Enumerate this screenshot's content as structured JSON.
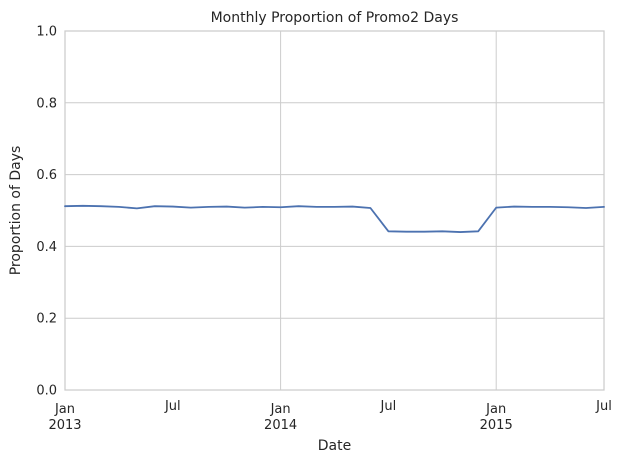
{
  "chart_data": {
    "type": "line",
    "title": "Monthly Proportion of Promo2 Days",
    "xlabel": "Date",
    "ylabel": "Proportion of Days",
    "ylim": [
      0,
      1.0
    ],
    "xlim": [
      "2013-01",
      "2015-07"
    ],
    "grid": true,
    "legend": "none",
    "y_ticks": [
      {
        "value": 0.0,
        "label": "0.0"
      },
      {
        "value": 0.2,
        "label": "0.2"
      },
      {
        "value": 0.4,
        "label": "0.4"
      },
      {
        "value": 0.6,
        "label": "0.6"
      },
      {
        "value": 0.8,
        "label": "0.8"
      },
      {
        "value": 1.0,
        "label": "1.0"
      }
    ],
    "x_ticks": [
      {
        "value": "2013-01",
        "label": "Jan",
        "year": "2013",
        "major": true
      },
      {
        "value": "2013-07",
        "label": "Jul",
        "year": "",
        "major": false
      },
      {
        "value": "2014-01",
        "label": "Jan",
        "year": "2014",
        "major": true
      },
      {
        "value": "2014-07",
        "label": "Jul",
        "year": "",
        "major": false
      },
      {
        "value": "2015-01",
        "label": "Jan",
        "year": "2015",
        "major": true
      },
      {
        "value": "2015-07",
        "label": "Jul",
        "year": "",
        "major": false
      }
    ],
    "x": [
      "2013-01",
      "2013-02",
      "2013-03",
      "2013-04",
      "2013-05",
      "2013-06",
      "2013-07",
      "2013-08",
      "2013-09",
      "2013-10",
      "2013-11",
      "2013-12",
      "2014-01",
      "2014-02",
      "2014-03",
      "2014-04",
      "2014-05",
      "2014-06",
      "2014-07",
      "2014-08",
      "2014-09",
      "2014-10",
      "2014-11",
      "2014-12",
      "2015-01",
      "2015-02",
      "2015-03",
      "2015-04",
      "2015-05",
      "2015-06",
      "2015-07"
    ],
    "series": [
      {
        "color": "#4c72b0",
        "values": [
          0.512,
          0.513,
          0.512,
          0.51,
          0.506,
          0.512,
          0.511,
          0.508,
          0.51,
          0.511,
          0.508,
          0.51,
          0.509,
          0.512,
          0.51,
          0.51,
          0.511,
          0.507,
          0.442,
          0.441,
          0.441,
          0.442,
          0.44,
          0.442,
          0.508,
          0.511,
          0.51,
          0.51,
          0.509,
          0.507,
          0.51
        ]
      }
    ]
  }
}
